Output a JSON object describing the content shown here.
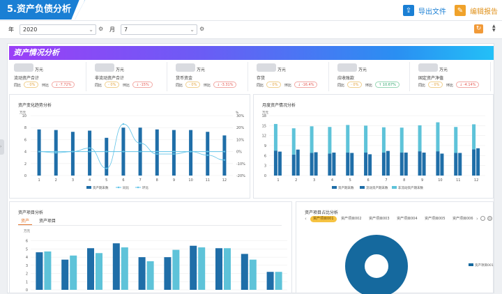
{
  "header": {
    "title": "5.资产负债分析",
    "export_label": "导出文件",
    "edit_label": "编辑报告"
  },
  "filters": {
    "year_label": "年",
    "year_value": "2020",
    "month_label": "月",
    "month_value": "7"
  },
  "section": {
    "banner_title": "资产情况分析"
  },
  "kpis": [
    {
      "unit": "万元",
      "name": "流动资产合计",
      "yoy_label": "同比",
      "yoy": "- 0%",
      "yoy_tone": "y",
      "mom_label": "环比",
      "mom": "↓ -7.72%",
      "mom_tone": "r"
    },
    {
      "unit": "万元",
      "name": "非流动资产合计",
      "yoy_label": "同比",
      "yoy": "- 0%",
      "yoy_tone": "y",
      "mom_label": "环比",
      "mom": "↓ -15%",
      "mom_tone": "r"
    },
    {
      "unit": "万元",
      "name": "货币资金",
      "yoy_label": "同比",
      "yoy": "- 0%",
      "yoy_tone": "y",
      "mom_label": "环比",
      "mom": "↓ -3.31%",
      "mom_tone": "r"
    },
    {
      "unit": "万元",
      "name": "存货",
      "yoy_label": "同比",
      "yoy": "- 0%",
      "yoy_tone": "y",
      "mom_label": "环比",
      "mom": "↓ -16.4%",
      "mom_tone": "r"
    },
    {
      "unit": "万元",
      "name": "应收账款",
      "yoy_label": "同比",
      "yoy": "- 0%",
      "yoy_tone": "y",
      "mom_label": "环比",
      "mom": "↑ 10.67%",
      "mom_tone": "g"
    },
    {
      "unit": "万元",
      "name": "固定资产净值",
      "yoy_label": "同比",
      "yoy": "- 0%",
      "yoy_tone": "y",
      "mom_label": "环比",
      "mom": "↓ -4.14%",
      "mom_tone": "r"
    }
  ],
  "colors": {
    "primary_bar": "#1f6ea8",
    "light_bar": "#5ec3d9",
    "line": "#5fc3e8",
    "donut": "#15699e"
  },
  "chart_data": [
    {
      "type": "bar",
      "title": "资产变化趋势分析",
      "y_unit": "万元",
      "y2_unit": "%",
      "categories": [
        "1",
        "2",
        "3",
        "4",
        "5",
        "6",
        "7",
        "8",
        "9",
        "10",
        "11",
        "12"
      ],
      "ylim": [
        0,
        10
      ],
      "yticks": [
        "0",
        "2",
        "4",
        "6",
        "8",
        "10"
      ],
      "y2lim": [
        -20,
        30
      ],
      "y2ticks": [
        "-20%",
        "-10%",
        "0%",
        "10%",
        "20%",
        "30%"
      ],
      "series": [
        {
          "name": "资产期末数",
          "kind": "bar",
          "values": [
            7.7,
            7.6,
            7.3,
            7.5,
            6.3,
            8.0,
            8.0,
            7.7,
            7.6,
            7.6,
            7.3,
            6.7
          ]
        },
        {
          "name": "同比",
          "kind": "line",
          "values": [
            0,
            0,
            0,
            0,
            0,
            0,
            0,
            0,
            0,
            0,
            0,
            0
          ]
        },
        {
          "name": "环比",
          "kind": "line",
          "values": [
            0,
            -1,
            0,
            3,
            -14,
            23,
            7,
            -2,
            -2,
            0,
            -3,
            -7
          ]
        }
      ]
    },
    {
      "type": "bar",
      "title": "月度资产情况分析",
      "y_unit": "万元",
      "categories": [
        "1",
        "2",
        "3",
        "4",
        "5",
        "6",
        "7",
        "8",
        "9",
        "10",
        "11",
        "12"
      ],
      "ylim": [
        0,
        18
      ],
      "yticks": [
        "0",
        "3",
        "6",
        "9",
        "12",
        "15",
        "18"
      ],
      "series": [
        {
          "name": "资产期末数",
          "values": [
            7.5,
            6.3,
            6.8,
            6.6,
            6.9,
            6.9,
            6.9,
            6.9,
            7.3,
            7.3,
            6.8,
            7.9
          ]
        },
        {
          "name": "流动资产期末数",
          "values": [
            7.2,
            7.8,
            7.0,
            6.9,
            6.8,
            6.4,
            7.4,
            6.9,
            6.9,
            6.6,
            6.8,
            8.2
          ]
        },
        {
          "name": "非流动资产期末数",
          "values": [
            15.5,
            14.2,
            14.8,
            14.6,
            15.2,
            15.0,
            14.5,
            14.4,
            15.1,
            16.0,
            14.6,
            15.4
          ]
        }
      ],
      "legend": [
        "资产期末数",
        "流动资产期末数",
        "非流动资产期末数"
      ]
    },
    {
      "type": "bar",
      "title": "资产项目分析",
      "tabs": [
        "资产",
        "资产项目"
      ],
      "y_unit": "万元",
      "ylim": [
        0,
        7
      ],
      "yticks": [
        "0",
        "1",
        "2",
        "3",
        "4",
        "5",
        "6"
      ],
      "series": [
        {
          "name": "dark",
          "values": [
            4.6,
            3.7,
            5.1,
            5.7,
            4.0,
            4.0,
            5.4,
            5.1,
            4.4,
            2.2
          ]
        },
        {
          "name": "light",
          "values": [
            4.7,
            4.2,
            4.5,
            5.2,
            3.5,
            4.9,
            5.2,
            5.1,
            3.7,
            2.2
          ]
        }
      ]
    },
    {
      "type": "pie",
      "title": "资产项目占比分析",
      "chips": [
        "资产项目001",
        "资产项目002",
        "资产项目003",
        "资产项目004",
        "资产项目005",
        "资产项目006"
      ],
      "slices": [
        {
          "label": "资产项目001",
          "value": 100
        }
      ],
      "legend": [
        "资产项目001"
      ]
    }
  ]
}
